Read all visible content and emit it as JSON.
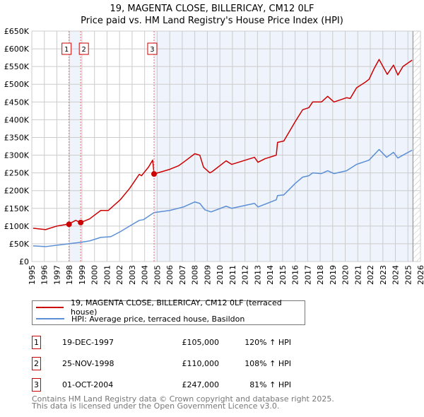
{
  "chart_data": {
    "type": "line",
    "title": "19, MAGENTA CLOSE, BILLERICAY, CM12 0LF",
    "subtitle": "Price paid vs. HM Land Registry's House Price Index (HPI)",
    "xlim": [
      1995,
      2026
    ],
    "ylim": [
      0,
      650000
    ],
    "x_ticks": [
      "1995",
      "1996",
      "1997",
      "1998",
      "1999",
      "2000",
      "2001",
      "2002",
      "2003",
      "2004",
      "2005",
      "2006",
      "2007",
      "2008",
      "2009",
      "2010",
      "2011",
      "2012",
      "2013",
      "2014",
      "2015",
      "2016",
      "2017",
      "2018",
      "2019",
      "2020",
      "2021",
      "2022",
      "2023",
      "2024",
      "2025",
      "2026"
    ],
    "y_ticks": [
      {
        "v": 0,
        "label": "£0"
      },
      {
        "v": 50000,
        "label": "£50K"
      },
      {
        "v": 100000,
        "label": "£100K"
      },
      {
        "v": 150000,
        "label": "£150K"
      },
      {
        "v": 200000,
        "label": "£200K"
      },
      {
        "v": 250000,
        "label": "£250K"
      },
      {
        "v": 300000,
        "label": "£300K"
      },
      {
        "v": 350000,
        "label": "£350K"
      },
      {
        "v": 400000,
        "label": "£400K"
      },
      {
        "v": 450000,
        "label": "£450K"
      },
      {
        "v": 500000,
        "label": "£500K"
      },
      {
        "v": 550000,
        "label": "£550K"
      },
      {
        "v": 600000,
        "label": "£600K"
      },
      {
        "v": 650000,
        "label": "£650K"
      }
    ],
    "grid": true,
    "data_end": 2025.4,
    "series": [
      {
        "name": "19, MAGENTA CLOSE, BILLERICAY, CM12 0LF (terraced house)",
        "color": "#cc0000",
        "points": [
          [
            1995.1,
            94000
          ],
          [
            1996.1,
            90000
          ],
          [
            1997,
            100000
          ],
          [
            1997.96,
            106000
          ],
          [
            1998.5,
            116000
          ],
          [
            1998.9,
            110000
          ],
          [
            1999.6,
            120000
          ],
          [
            2000.5,
            144000
          ],
          [
            2001.1,
            144000
          ],
          [
            2002.05,
            174000
          ],
          [
            2002.8,
            206000
          ],
          [
            2003.57,
            246000
          ],
          [
            2003.75,
            242000
          ],
          [
            2004.3,
            266000
          ],
          [
            2004.64,
            286000
          ],
          [
            2004.75,
            247000
          ],
          [
            2006,
            260000
          ],
          [
            2006.7,
            270000
          ],
          [
            2007.1,
            280000
          ],
          [
            2008,
            304000
          ],
          [
            2008.4,
            300000
          ],
          [
            2008.7,
            266000
          ],
          [
            2009.2,
            250000
          ],
          [
            2009.4,
            254000
          ],
          [
            2010.5,
            284000
          ],
          [
            2010.95,
            274000
          ],
          [
            2012.76,
            294000
          ],
          [
            2013.04,
            280000
          ],
          [
            2013.6,
            290000
          ],
          [
            2014.5,
            300000
          ],
          [
            2014.6,
            336000
          ],
          [
            2015.1,
            340000
          ],
          [
            2016,
            394000
          ],
          [
            2016.6,
            428000
          ],
          [
            2017.1,
            434000
          ],
          [
            2017.4,
            450000
          ],
          [
            2018.1,
            450000
          ],
          [
            2018.6,
            466000
          ],
          [
            2019.1,
            450000
          ],
          [
            2020.1,
            462000
          ],
          [
            2020.4,
            460000
          ],
          [
            2020.9,
            490000
          ],
          [
            2021.6,
            506000
          ],
          [
            2021.9,
            514000
          ],
          [
            2022.3,
            544000
          ],
          [
            2022.7,
            570000
          ],
          [
            2023.35,
            528000
          ],
          [
            2023.85,
            554000
          ],
          [
            2024.2,
            526000
          ],
          [
            2024.6,
            550000
          ],
          [
            2025.33,
            568000
          ]
        ]
      },
      {
        "name": "HPI: Average price, terraced house, Basildon",
        "color": "#5b8fd6",
        "points": [
          [
            1995.1,
            44000
          ],
          [
            1996.1,
            42000
          ],
          [
            1997.96,
            50000
          ],
          [
            1998.9,
            54000
          ],
          [
            1999.6,
            58000
          ],
          [
            2000.5,
            68000
          ],
          [
            2001.3,
            70000
          ],
          [
            2002.05,
            84000
          ],
          [
            2002.8,
            100000
          ],
          [
            2003.57,
            116000
          ],
          [
            2003.9,
            118000
          ],
          [
            2004.75,
            138000
          ],
          [
            2006,
            144000
          ],
          [
            2007.1,
            154000
          ],
          [
            2008,
            168000
          ],
          [
            2008.4,
            164000
          ],
          [
            2008.8,
            146000
          ],
          [
            2009.3,
            140000
          ],
          [
            2010.5,
            156000
          ],
          [
            2010.95,
            150000
          ],
          [
            2012.76,
            164000
          ],
          [
            2013.04,
            154000
          ],
          [
            2014.5,
            174000
          ],
          [
            2014.6,
            186000
          ],
          [
            2015.1,
            188000
          ],
          [
            2016,
            220000
          ],
          [
            2016.6,
            238000
          ],
          [
            2017.1,
            242000
          ],
          [
            2017.4,
            250000
          ],
          [
            2018.1,
            248000
          ],
          [
            2018.6,
            256000
          ],
          [
            2019.1,
            248000
          ],
          [
            2020.1,
            256000
          ],
          [
            2020.9,
            274000
          ],
          [
            2021.9,
            286000
          ],
          [
            2022.7,
            316000
          ],
          [
            2023.3,
            294000
          ],
          [
            2023.85,
            308000
          ],
          [
            2024.2,
            292000
          ],
          [
            2024.6,
            300000
          ],
          [
            2025.33,
            314000
          ]
        ]
      }
    ],
    "sales": [
      {
        "label": "1",
        "x": 1997.97,
        "price": 105000
      },
      {
        "label": "2",
        "x": 1998.9,
        "price": 110000
      },
      {
        "label": "3",
        "x": 2004.75,
        "price": 247000
      }
    ]
  },
  "legend": {
    "property": "19, MAGENTA CLOSE, BILLERICAY, CM12 0LF (terraced house)",
    "hpi": "HPI: Average price, terraced house, Basildon"
  },
  "transactions": [
    {
      "num": "1",
      "date": "19-DEC-1997",
      "price": "£105,000",
      "hpi": "120% ↑ HPI"
    },
    {
      "num": "2",
      "date": "25-NOV-1998",
      "price": "£110,000",
      "hpi": "108% ↑ HPI"
    },
    {
      "num": "3",
      "date": "01-OCT-2004",
      "price": "£247,000",
      "hpi": "81% ↑ HPI"
    }
  ],
  "footer": {
    "line1": "Contains HM Land Registry data © Crown copyright and database right 2025.",
    "line2": "This data is licensed under the Open Government Licence v3.0."
  },
  "colors": {
    "property": "#cc0000",
    "hpi": "#5b8fd6",
    "shade": "#eef3fc",
    "grid": "#cccccc"
  }
}
